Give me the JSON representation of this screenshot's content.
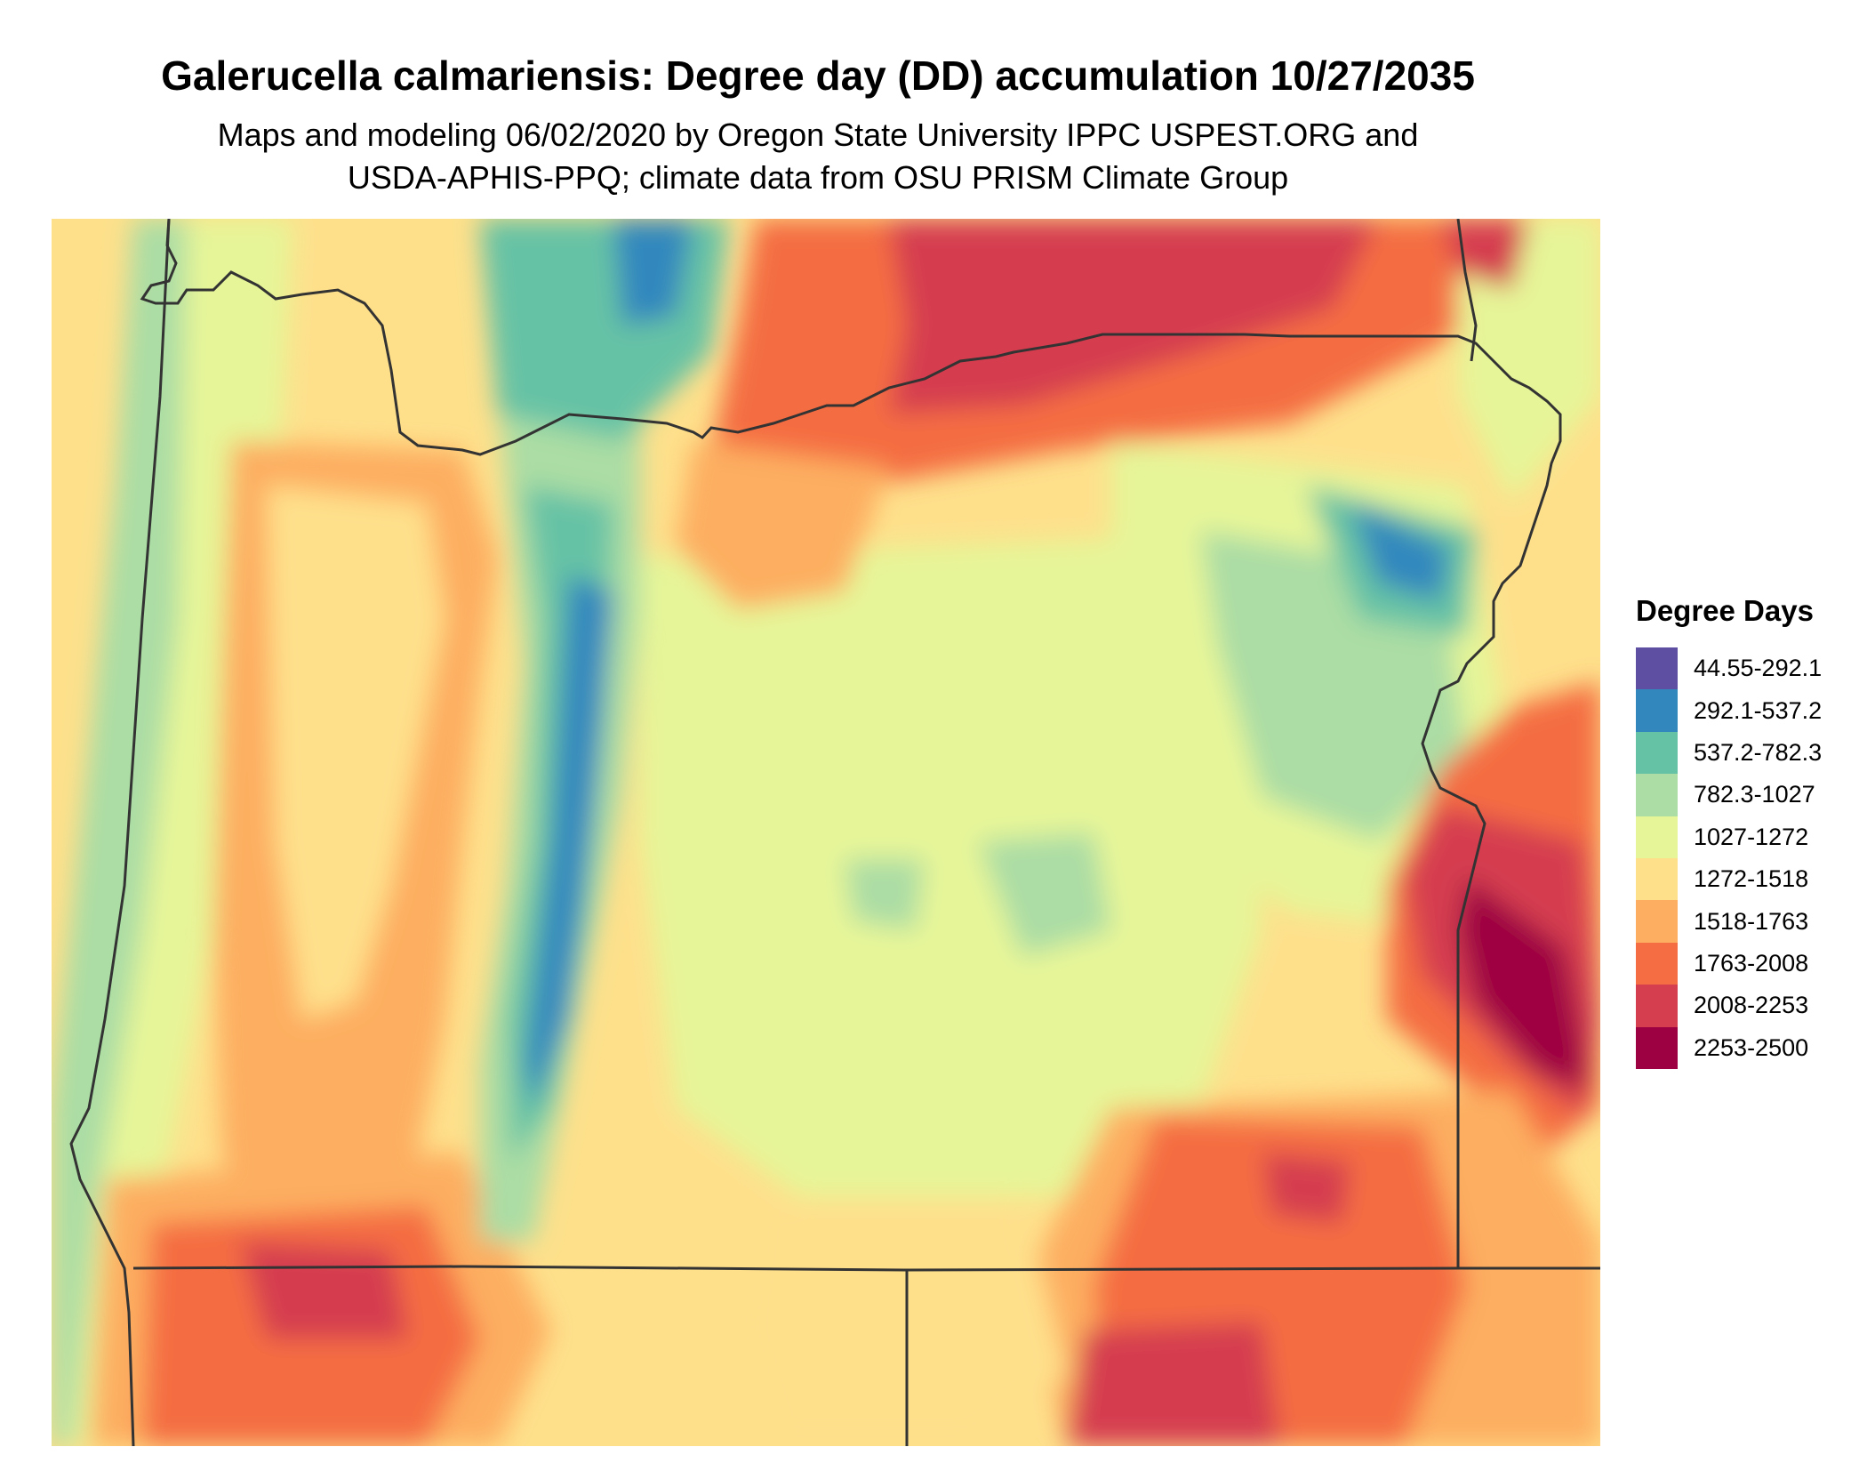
{
  "title": "Galerucella calmariensis: Degree day (DD) accumulation 10/27/2035",
  "subtitle_lines": [
    "Maps and modeling 06/02/2020 by Oregon State University IPPC USPEST.ORG and",
    "USDA-APHIS-PPQ; climate data from OSU PRISM Climate Group"
  ],
  "legend": {
    "title": "Degree Days",
    "items": [
      {
        "label": "44.55-292.1",
        "color": "#5E4FA2"
      },
      {
        "label": "292.1-537.2",
        "color": "#3288BD"
      },
      {
        "label": "537.2-782.3",
        "color": "#66C2A5"
      },
      {
        "label": "782.3-1027",
        "color": "#ABDDA4"
      },
      {
        "label": "1027-1272",
        "color": "#E6F598"
      },
      {
        "label": "1272-1518",
        "color": "#FEE08B"
      },
      {
        "label": "1518-1763",
        "color": "#FDAE61"
      },
      {
        "label": "1763-2008",
        "color": "#F46D43"
      },
      {
        "label": "2008-2253",
        "color": "#D53E4F"
      },
      {
        "label": "2253-2500",
        "color": "#9E0142"
      }
    ]
  }
}
